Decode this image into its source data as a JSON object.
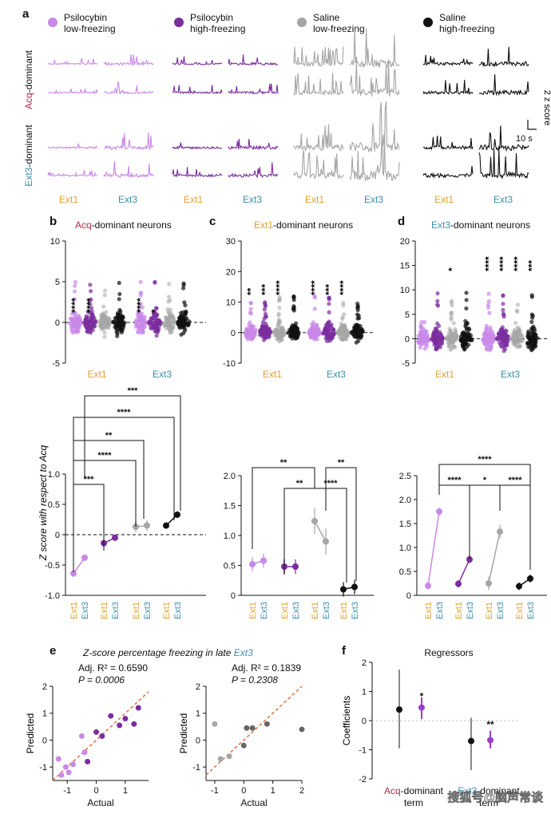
{
  "colors": {
    "psi_low": "#c989e8",
    "psi_high": "#7b2d9e",
    "sal_low": "#a6a6a6",
    "sal_high": "#111111",
    "ext1": "#e0a030",
    "ext3": "#3d8fb0",
    "acq": "#b03048",
    "fit": "#e07040"
  },
  "panel_labels": {
    "a": "a",
    "b": "b",
    "c": "c",
    "d": "d",
    "e": "e",
    "f": "f"
  },
  "legend": [
    {
      "line1": "Psilocybin",
      "line2": "low-freezing"
    },
    {
      "line1": "Psilocybin",
      "line2": "high-freezing"
    },
    {
      "line1": "Saline",
      "line2": "low-freezing"
    },
    {
      "line1": "Saline",
      "line2": "high-freezing"
    }
  ],
  "row_labels": {
    "acq_prefix": "Acq",
    "acq_suffix": "-dominant",
    "ext3_prefix": "Ext3",
    "ext3_suffix": "-dominant"
  },
  "trace_xlabels": {
    "ext1": "Ext1",
    "ext3": "Ext3"
  },
  "scalebar": {
    "y": "2 z score",
    "x": "10 s"
  },
  "panel_b": {
    "title_prefix": "Acq",
    "title_suffix": "-dominant neurons",
    "yticks": [
      "10",
      "5",
      "0",
      "-5"
    ],
    "xcats": [
      "Ext1",
      "Ext3"
    ],
    "stars": [
      "****",
      "****",
      "",
      "",
      "****",
      "*",
      "",
      ""
    ],
    "yticks2": [
      "1.0",
      "0.5",
      "0",
      "-0.5",
      "-1.0"
    ],
    "means": [
      [
        -0.64,
        -0.38
      ],
      [
        -0.14,
        -0.05
      ],
      [
        0.13,
        0.15
      ],
      [
        0.15,
        0.33
      ]
    ],
    "brackets": [
      "***",
      "****",
      "**",
      "****",
      "***"
    ]
  },
  "panel_c": {
    "title_prefix": "Ext1",
    "title_suffix": "-dominant neurons",
    "yticks": [
      "30",
      "20",
      "10",
      "0",
      "-10"
    ],
    "xcats": [
      "Ext1",
      "Ext3"
    ],
    "stars": [
      "**",
      "***",
      "****",
      "",
      "****",
      "***",
      "****",
      ""
    ],
    "yticks2": [
      "2.0",
      "1.5",
      "1.0",
      "0.5",
      "0"
    ],
    "means": [
      [
        0.52,
        0.58
      ],
      [
        0.48,
        0.48
      ],
      [
        1.24,
        0.9
      ],
      [
        0.1,
        0.14
      ]
    ],
    "brackets": [
      "**",
      "**",
      "****",
      "**"
    ]
  },
  "panel_d": {
    "title_prefix": "Ext3",
    "title_suffix": "-dominant neurons",
    "yticks": [
      "20",
      "15",
      "10",
      "5",
      "0",
      "-5"
    ],
    "xcats": [
      "Ext1",
      "Ext3"
    ],
    "stars": [
      "",
      "",
      "*",
      "",
      "****",
      "****",
      "****",
      "***"
    ],
    "yticks2": [
      "2.5",
      "2.0",
      "1.5",
      "1.0",
      "0.5",
      "0"
    ],
    "means": [
      [
        0.2,
        1.75
      ],
      [
        0.24,
        0.75
      ],
      [
        0.25,
        1.33
      ],
      [
        0.19,
        0.35
      ]
    ],
    "brackets": [
      "****",
      "****",
      "*",
      "****"
    ]
  },
  "shared_ylabel": "Z score with respect to Acq",
  "xpair": [
    "Ext1",
    "Ext3"
  ],
  "panel_e": {
    "title_prefix": "Z-score percentage freezing in late ",
    "title_suffix": "Ext3",
    "left": {
      "r2": "Adj. R² = 0.6590",
      "p": "P = 0.0006"
    },
    "right": {
      "r2": "Adj. R² = 0.1839",
      "p": "P = 0.2308"
    },
    "xlabel": "Actual",
    "ylabel": "Predicted",
    "yticks": [
      "2",
      "1",
      "0",
      "-1"
    ],
    "xticks_left": [
      "-1",
      "0",
      "1"
    ],
    "xticks_right": [
      "-1",
      "0",
      "1",
      "2"
    ]
  },
  "panel_f": {
    "title": "Regressors",
    "ylabel": "Coefficients",
    "yticks": [
      "2",
      "1",
      "0",
      "-1",
      "-2"
    ],
    "x1_prefix": "Acq",
    "x1_suffix": "-dominant",
    "x1_line2": "term",
    "x2_prefix": "Ext3",
    "x2_suffix": "-dominant",
    "x2_line2": "term",
    "stars": [
      "*",
      "**"
    ]
  },
  "watermark": "搜狐号@脑声常谈",
  "chart_data": [
    {
      "type": "scatter",
      "title": "Z-score percentage freezing in late Ext3 (psilocybin)",
      "xlabel": "Actual",
      "ylabel": "Predicted",
      "series": [
        {
          "name": "low-freezing",
          "x": [
            -1.3,
            -1.2,
            -1.05,
            -0.95,
            -0.8,
            -0.5,
            -0.4
          ],
          "y": [
            -0.7,
            -1.3,
            -1.0,
            -1.2,
            -0.9,
            0.15,
            -0.45
          ]
        },
        {
          "name": "high-freezing",
          "x": [
            -0.3,
            0.0,
            0.2,
            0.5,
            0.8,
            1.0,
            1.3,
            1.45
          ],
          "y": [
            -0.8,
            0.3,
            0.15,
            0.9,
            0.55,
            0.8,
            0.6,
            1.2
          ]
        }
      ]
    },
    {
      "type": "scatter",
      "title": "Z-score percentage freezing in late Ext3 (saline)",
      "xlabel": "Actual",
      "ylabel": "Predicted",
      "series": [
        {
          "name": "low-freezing",
          "x": [
            -1.0,
            -0.8,
            -0.5
          ],
          "y": [
            0.6,
            -0.7,
            -0.6
          ]
        },
        {
          "name": "high-freezing",
          "x": [
            0.0,
            0.1,
            0.3,
            0.8,
            2.0
          ],
          "y": [
            -0.2,
            0.45,
            0.45,
            0.6,
            0.4
          ]
        }
      ]
    },
    {
      "type": "scatter",
      "title": "Regressors",
      "ylabel": "Coefficients",
      "series": [
        {
          "name": "Saline",
          "x": [
            "Acq-dominant term",
            "Ext3-dominant term"
          ],
          "y": [
            0.38,
            -0.7
          ],
          "ci": [
            [
              -0.95,
              1.75
            ],
            [
              -1.7,
              0.1
            ]
          ]
        },
        {
          "name": "Psilocybin",
          "x": [
            "Acq-dominant term",
            "Ext3-dominant term"
          ],
          "y": [
            0.45,
            -0.67
          ],
          "ci": [
            [
              0.05,
              0.8
            ],
            [
              -0.95,
              -0.35
            ]
          ]
        }
      ]
    }
  ]
}
